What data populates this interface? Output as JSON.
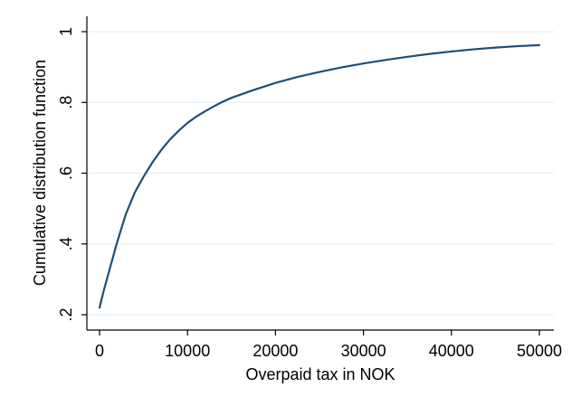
{
  "chart_data": {
    "type": "line",
    "title": "",
    "xlabel": "Overpaid tax in NOK",
    "ylabel": "Cumulative distribution function",
    "xlim": [
      0,
      50000
    ],
    "ylim": [
      0.2,
      1.0
    ],
    "x_ticks": [
      0,
      10000,
      20000,
      30000,
      40000,
      50000
    ],
    "x_tick_labels": [
      "0",
      "10000",
      "20000",
      "30000",
      "40000",
      "50000"
    ],
    "y_ticks": [
      0.2,
      0.4,
      0.6,
      0.8,
      1.0
    ],
    "y_tick_labels": [
      ".2",
      ".4",
      ".6",
      ".8",
      "1"
    ],
    "grid": "horizontal",
    "line_color": "#1f4e79",
    "grid_color": "#e8eef3",
    "series": [
      {
        "x": [
          0,
          500,
          1000,
          2000,
          3000,
          4000,
          5000,
          6000,
          7000,
          8000,
          9000,
          10000,
          11000,
          12000,
          13000,
          14000,
          15000,
          17500,
          20000,
          22500,
          25000,
          27500,
          30000,
          32500,
          35000,
          37500,
          40000,
          42500,
          45000,
          47500,
          50000
        ],
        "values": [
          0.22,
          0.27,
          0.315,
          0.405,
          0.485,
          0.545,
          0.59,
          0.63,
          0.665,
          0.695,
          0.72,
          0.742,
          0.76,
          0.775,
          0.789,
          0.802,
          0.813,
          0.835,
          0.855,
          0.872,
          0.886,
          0.899,
          0.91,
          0.92,
          0.929,
          0.937,
          0.944,
          0.95,
          0.955,
          0.959,
          0.962
        ]
      }
    ]
  }
}
